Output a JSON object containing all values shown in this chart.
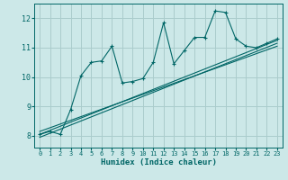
{
  "title": "",
  "xlabel": "Humidex (Indice chaleur)",
  "bg_color": "#cce8e8",
  "grid_color": "#aacccc",
  "line_color": "#006666",
  "xlim": [
    -0.5,
    23.5
  ],
  "ylim": [
    7.6,
    12.5
  ],
  "xticks": [
    0,
    1,
    2,
    3,
    4,
    5,
    6,
    7,
    8,
    9,
    10,
    11,
    12,
    13,
    14,
    15,
    16,
    17,
    18,
    19,
    20,
    21,
    22,
    23
  ],
  "yticks": [
    8,
    9,
    10,
    11,
    12
  ],
  "data_line": {
    "x": [
      0,
      1,
      2,
      3,
      4,
      5,
      6,
      7,
      8,
      9,
      10,
      11,
      12,
      13,
      14,
      15,
      16,
      17,
      18,
      19,
      20,
      21,
      22,
      23
    ],
    "y": [
      8.05,
      8.15,
      8.05,
      8.9,
      10.05,
      10.5,
      10.55,
      11.05,
      9.8,
      9.85,
      9.95,
      10.5,
      11.85,
      10.45,
      10.9,
      11.35,
      11.35,
      12.25,
      12.2,
      11.3,
      11.05,
      11.0,
      11.15,
      11.3
    ]
  },
  "regression_lines": [
    {
      "x": [
        0,
        23
      ],
      "y": [
        8.05,
        11.25
      ]
    },
    {
      "x": [
        0,
        23
      ],
      "y": [
        7.95,
        11.15
      ]
    },
    {
      "x": [
        0,
        23
      ],
      "y": [
        8.15,
        11.05
      ]
    }
  ]
}
